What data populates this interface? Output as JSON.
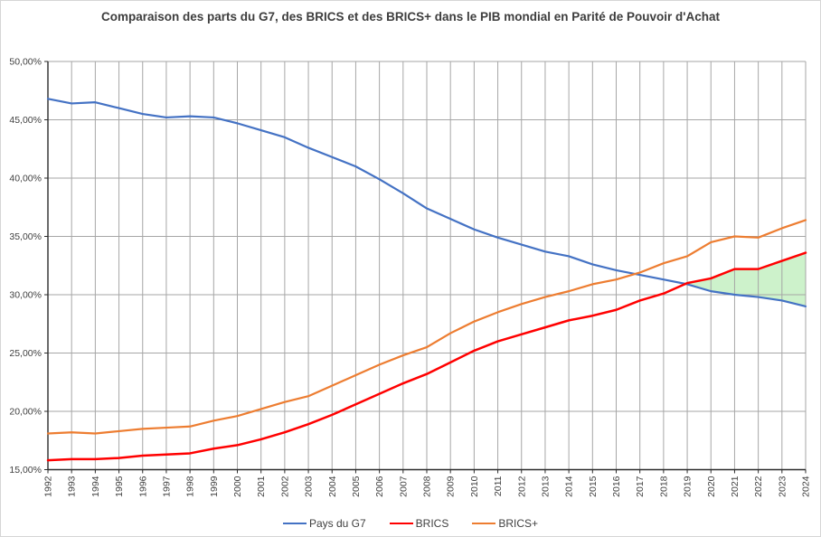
{
  "chart_data": {
    "type": "line",
    "title": "Comparaison des parts du G7, des BRICS et des BRICS+ dans le PIB mondial en Parité de Pouvoir d'Achat",
    "x": [
      "1992",
      "1993",
      "1994",
      "1995",
      "1996",
      "1997",
      "1998",
      "1999",
      "2000",
      "2001",
      "2002",
      "2003",
      "2004",
      "2005",
      "2006",
      "2007",
      "2008",
      "2009",
      "2010",
      "2011",
      "2012",
      "2013",
      "2014",
      "2015",
      "2016",
      "2017",
      "2018",
      "2019",
      "2020",
      "2021",
      "2022",
      "2023",
      "2024"
    ],
    "series": [
      {
        "id": "g7",
        "name": "Pays du G7",
        "color": "#4472C4",
        "values": [
          46.8,
          46.4,
          46.5,
          46.0,
          45.5,
          45.2,
          45.3,
          45.2,
          44.7,
          44.1,
          43.5,
          42.6,
          41.8,
          41.0,
          39.9,
          38.7,
          37.4,
          36.5,
          35.6,
          34.9,
          34.3,
          33.7,
          33.3,
          32.6,
          32.1,
          31.7,
          31.3,
          30.9,
          30.3,
          30.0,
          29.8,
          29.5,
          29.0
        ]
      },
      {
        "id": "brics",
        "name": "BRICS",
        "color": "#FF0000",
        "values": [
          15.8,
          15.9,
          15.9,
          16.0,
          16.2,
          16.3,
          16.4,
          16.8,
          17.1,
          17.6,
          18.2,
          18.9,
          19.7,
          20.6,
          21.5,
          22.4,
          23.2,
          24.2,
          25.2,
          26.0,
          26.6,
          27.2,
          27.8,
          28.2,
          28.7,
          29.5,
          30.1,
          31.0,
          31.4,
          32.2,
          32.2,
          32.9,
          33.6
        ]
      },
      {
        "id": "bricsplus",
        "name": "BRICS+",
        "color": "#ED7D31",
        "values": [
          18.1,
          18.2,
          18.1,
          18.3,
          18.5,
          18.6,
          18.7,
          19.2,
          19.6,
          20.2,
          20.8,
          21.3,
          22.2,
          23.1,
          24.0,
          24.8,
          25.5,
          26.7,
          27.7,
          28.5,
          29.2,
          29.8,
          30.3,
          30.9,
          31.3,
          31.9,
          32.7,
          33.3,
          34.5,
          35.0,
          34.9,
          35.7,
          36.4
        ]
      }
    ],
    "ylim": [
      15,
      50
    ],
    "ylabel": "",
    "xlabel": "",
    "grid": true,
    "legend_position": "bottom",
    "y_ticks": [
      {
        "value": 50,
        "label": "50,00%"
      },
      {
        "value": 45,
        "label": "45,00%"
      },
      {
        "value": 40,
        "label": "40,00%"
      },
      {
        "value": 35,
        "label": "35,00%"
      },
      {
        "value": 30,
        "label": "30,00%"
      },
      {
        "value": 25,
        "label": "25,00%"
      },
      {
        "value": 20,
        "label": "20,00%"
      },
      {
        "value": 15,
        "label": "15,00%"
      }
    ],
    "fill_between": {
      "upper": "BRICS",
      "lower": "Pays du G7",
      "from_crossing": true,
      "color": "#CDF2CB"
    },
    "colors": {
      "grid": "#A6A6A6",
      "axis": "#2b2b2b",
      "text": "#404040"
    }
  }
}
